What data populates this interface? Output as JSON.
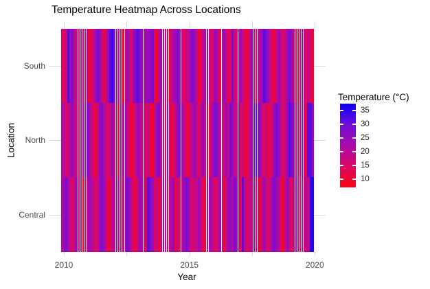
{
  "title": "Temperature Heatmap Across Locations",
  "x_axis": {
    "label": "Year",
    "tick_labels": [
      "2010",
      "2015",
      "2020"
    ],
    "tick_years": [
      2010,
      2015,
      2020
    ],
    "minor_tick_years": [
      2012.5,
      2017.5
    ]
  },
  "y_axis": {
    "label": "Location",
    "categories": [
      "South",
      "North",
      "Central"
    ]
  },
  "legend": {
    "title": "Temperature (°C)",
    "tick_labels": [
      "35",
      "30",
      "25",
      "20",
      "15",
      "10"
    ],
    "tick_values": [
      35,
      30,
      25,
      20,
      15,
      10
    ]
  },
  "colors": {
    "gradient_low": "#0B00F5",
    "gradient_high": "#FA0511",
    "gradient_stops": [
      {
        "t": 0.0,
        "c": "#0B00F5"
      },
      {
        "t": 0.25,
        "c": "#6F0ED8"
      },
      {
        "t": 0.5,
        "c": "#AB09AB"
      },
      {
        "t": 0.75,
        "c": "#DC0766"
      },
      {
        "t": 1.0,
        "c": "#FA0511"
      }
    ],
    "grid": "#DBDBDB",
    "axis_text": "#4D4D4D",
    "title_text": "#000000",
    "background": "#FFFFFF"
  },
  "chart_data": {
    "type": "heatmap",
    "title": "Temperature Heatmap Across Locations",
    "xlabel": "Year",
    "ylabel": "Location",
    "legend_title": "Temperature (°C)",
    "x_unit": "month",
    "x_start": "2010-01",
    "x_end": "2019-12",
    "n_cols": 120,
    "value_limits": [
      7,
      37.5
    ],
    "legend_ticks": [
      35,
      30,
      25,
      20,
      15,
      10
    ],
    "color_scale": {
      "low": "blue",
      "high": "red"
    },
    "rows_top_to_bottom": [
      "South",
      "North",
      "Central"
    ],
    "rows": [
      {
        "name": "South",
        "values": [
          31,
          31,
          26,
          13,
          20,
          16,
          26,
          26,
          31,
          26,
          26,
          31,
          20,
          35,
          31,
          26,
          20,
          16,
          20,
          26,
          35,
          26,
          20,
          13,
          11,
          16,
          20,
          26,
          31,
          35,
          26,
          20,
          26,
          31,
          20,
          16,
          13,
          16,
          20,
          26,
          20,
          20,
          20,
          16,
          31,
          35,
          26,
          20,
          26,
          26,
          31,
          35,
          26,
          23,
          20,
          16,
          20,
          26,
          31,
          26,
          26,
          20,
          16,
          20,
          26,
          35,
          31,
          26,
          20,
          23,
          26,
          31,
          26,
          20,
          26,
          35,
          26,
          20,
          26,
          31,
          31,
          16,
          26,
          31,
          26,
          20,
          26,
          31,
          35,
          26,
          20,
          26,
          31,
          26,
          23,
          20,
          13,
          16,
          20,
          26,
          31,
          35,
          26,
          20,
          26,
          31,
          26,
          20,
          16,
          20,
          26,
          31,
          35,
          26,
          20,
          26,
          31,
          26,
          31,
          35
        ]
      },
      {
        "name": "North",
        "values": [
          23,
          23,
          31,
          26,
          23,
          20,
          26,
          26,
          31,
          26,
          23,
          20,
          16,
          20,
          26,
          31,
          35,
          26,
          20,
          16,
          23,
          26,
          31,
          26,
          20,
          26,
          35,
          31,
          26,
          23,
          20,
          26,
          31,
          35,
          31,
          26,
          20,
          23,
          26,
          26,
          31,
          26,
          31,
          35,
          26,
          20,
          16,
          26,
          31,
          26,
          20,
          26,
          35,
          31,
          26,
          20,
          16,
          20,
          26,
          31,
          35,
          26,
          23,
          20,
          26,
          31,
          26,
          20,
          26,
          35,
          31,
          26,
          20,
          16,
          20,
          26,
          31,
          26,
          20,
          26,
          16,
          20,
          26,
          26,
          20,
          31,
          26,
          35,
          31,
          26,
          20,
          16,
          13,
          16,
          20,
          26,
          31,
          26,
          35,
          31,
          26,
          20,
          16,
          20,
          26,
          31,
          26,
          20,
          13,
          16,
          20,
          26,
          31,
          26,
          20,
          26,
          35,
          13,
          13,
          20
        ]
      },
      {
        "name": "Central",
        "values": [
          23,
          20,
          16,
          23,
          26,
          31,
          26,
          20,
          26,
          31,
          35,
          31,
          26,
          20,
          23,
          26,
          31,
          26,
          20,
          16,
          20,
          26,
          35,
          31,
          26,
          23,
          20,
          26,
          31,
          26,
          20,
          16,
          20,
          26,
          31,
          35,
          26,
          20,
          23,
          26,
          31,
          13,
          16,
          20,
          31,
          26,
          35,
          26,
          20,
          26,
          31,
          26,
          23,
          20,
          35,
          26,
          31,
          26,
          20,
          16,
          20,
          26,
          31,
          26,
          26,
          20,
          26,
          31,
          35,
          26,
          20,
          23,
          26,
          31,
          26,
          20,
          26,
          35,
          26,
          20,
          20,
          23,
          16,
          20,
          26,
          31,
          13,
          26,
          31,
          26,
          26,
          20,
          26,
          31,
          35,
          26,
          20,
          26,
          31,
          26,
          20,
          16,
          20,
          26,
          31,
          35,
          26,
          20,
          26,
          31,
          26,
          20,
          26,
          31,
          26,
          26,
          26,
          26,
          9,
          9
        ]
      }
    ]
  }
}
